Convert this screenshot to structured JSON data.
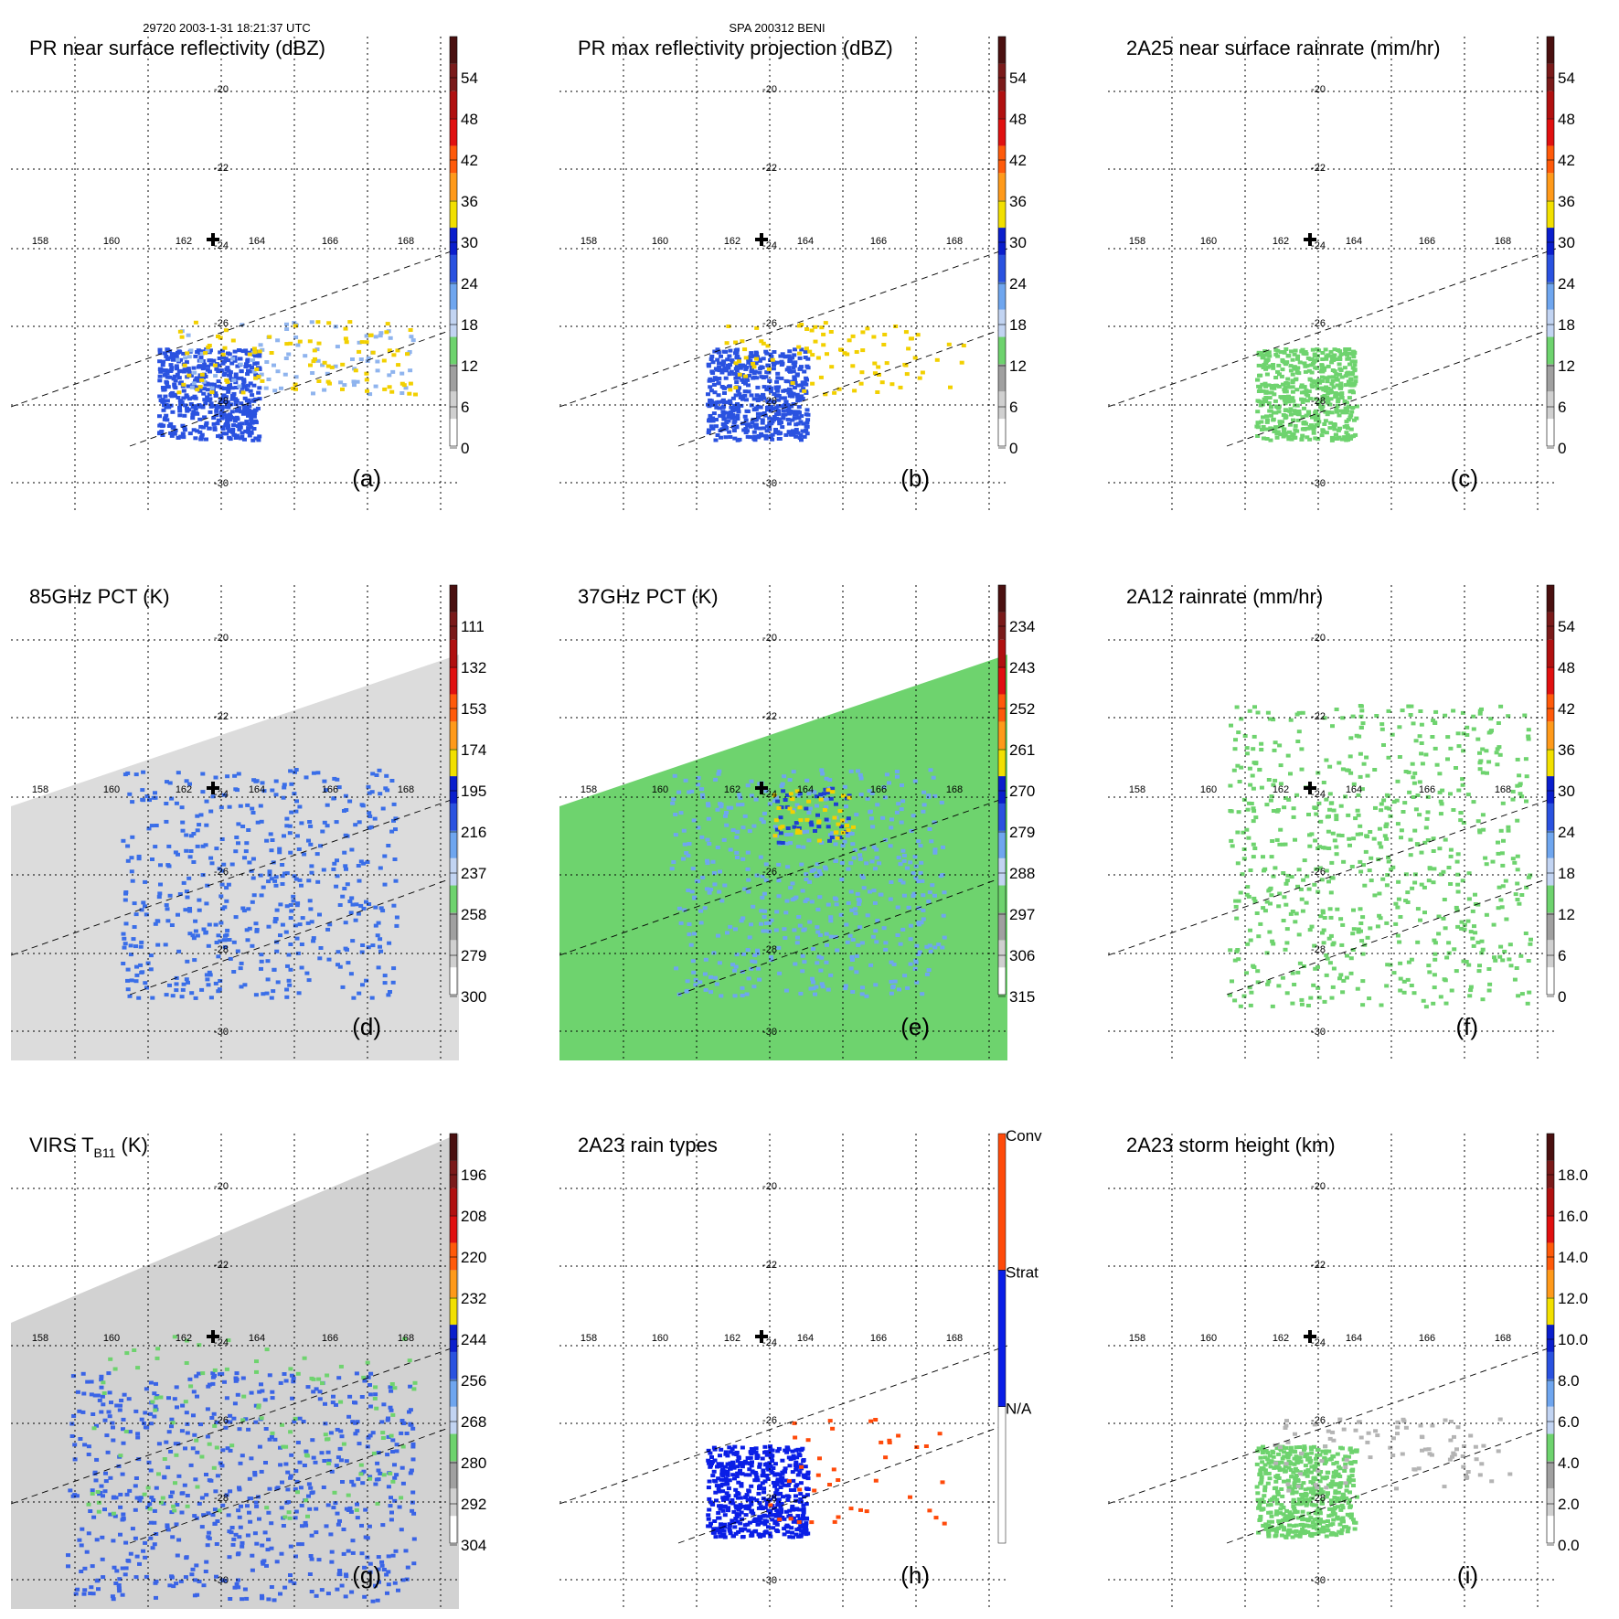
{
  "header": {
    "orbit_time": "29720 2003-1-31 18:21:37 UTC",
    "case_id": "SPA 200312 BENI"
  },
  "grid": {
    "lon_labels": [
      "158",
      "160",
      "162",
      "164",
      "166",
      "168"
    ],
    "lat_labels": [
      "-20",
      "-22",
      "-24",
      "-26",
      "-28",
      "-30"
    ],
    "marker": "plus-marker"
  },
  "chart_data": [
    {
      "type": "heatmap",
      "id": "a",
      "title": "PR near surface reflectivity (dBZ)",
      "panel_label": "(a)",
      "colorbar": {
        "ticks": [
          "54",
          "48",
          "42",
          "36",
          "30",
          "24",
          "18",
          "12",
          "6",
          "0"
        ]
      },
      "swath": "pr",
      "field": [
        {
          "name": "Stratiform reflectivity 24-30 dBZ",
          "color": "#2a52e0"
        },
        {
          "name": "Weak echo 18-24 dBZ",
          "color": "#8fb4ee"
        },
        {
          "name": "Convective cores 36-42 dBZ",
          "color": "#f2d000"
        }
      ]
    },
    {
      "type": "heatmap",
      "id": "b",
      "title": "PR max reflectivity projection (dBZ)",
      "panel_label": "(b)",
      "colorbar": {
        "ticks": [
          "54",
          "48",
          "42",
          "36",
          "30",
          "24",
          "18",
          "12",
          "6",
          "0"
        ]
      },
      "swath": "pr",
      "field": [
        {
          "name": "Max reflectivity 24-30 dBZ",
          "color": "#2a52e0"
        },
        {
          "name": "Max reflectivity 36-42 dBZ",
          "color": "#f2d000"
        }
      ]
    },
    {
      "type": "heatmap",
      "id": "c",
      "title": "2A25 near surface rainrate (mm/hr)",
      "panel_label": "(c)",
      "colorbar": {
        "ticks": [
          "54",
          "48",
          "42",
          "36",
          "30",
          "24",
          "18",
          "12",
          "6",
          "0"
        ]
      },
      "swath": "pr",
      "field": [
        {
          "name": "Rain rate 0-6 mm/hr",
          "color": "#6ed36e"
        }
      ]
    },
    {
      "type": "heatmap",
      "id": "d",
      "title": "85GHz PCT (K)",
      "panel_label": "(d)",
      "colorbar": {
        "ticks": [
          "111",
          "132",
          "153",
          "174",
          "195",
          "216",
          "237",
          "258",
          "279",
          "300"
        ]
      },
      "swath": "tmi",
      "field": [
        {
          "name": "Background 279-300 K",
          "color": "#dcdcdc"
        },
        {
          "name": "Scattering minimum 195-216 K",
          "color": "#3a6ee8"
        }
      ]
    },
    {
      "type": "heatmap",
      "id": "e",
      "title": "37GHz PCT (K)",
      "panel_label": "(e)",
      "colorbar": {
        "ticks": [
          "234",
          "243",
          "252",
          "261",
          "270",
          "279",
          "288",
          "297",
          "306",
          "315"
        ]
      },
      "swath": "tmi",
      "field": [
        {
          "name": "Clear ocean 288-297 K",
          "color": "#6ed36e"
        },
        {
          "name": "Rain region 270-279 K",
          "color": "#6fa6ef"
        },
        {
          "name": "Heavy rain 261-270 K",
          "color": "#1e3fd2"
        },
        {
          "name": "Core 252-261 K",
          "color": "#f2d000"
        }
      ]
    },
    {
      "type": "heatmap",
      "id": "f",
      "title": "2A12 rainrate (mm/hr)",
      "panel_label": "(f)",
      "colorbar": {
        "ticks": [
          "54",
          "48",
          "42",
          "36",
          "30",
          "24",
          "18",
          "12",
          "6",
          "0"
        ]
      },
      "swath": "tmi",
      "field": [
        {
          "name": "Rain rate 0-6 mm/hr",
          "color": "#6ed36e"
        }
      ]
    },
    {
      "type": "heatmap",
      "id": "g",
      "title": "VIRS T",
      "title_sub": "B11",
      "title_tail": " (K)",
      "panel_label": "(g)",
      "colorbar": {
        "ticks": [
          "196",
          "208",
          "220",
          "232",
          "244",
          "256",
          "268",
          "280",
          "292",
          "304"
        ]
      },
      "swath": "virs",
      "field": [
        {
          "name": "Warm ocean 280-292 K",
          "color": "#d2d2d2"
        },
        {
          "name": "Cold cloud tops 244-256 K",
          "color": "#3a64e6"
        },
        {
          "name": "Cloud edge 256-268 K",
          "color": "#6ed36e"
        }
      ]
    },
    {
      "type": "heatmap",
      "id": "h",
      "title": "2A23 rain types",
      "panel_label": "(h)",
      "colorbar": {
        "categories": [
          "Conv",
          "Strat",
          "N/A"
        ]
      },
      "swath": "pr",
      "field": [
        {
          "name": "Stratiform",
          "color": "#0a1ee6"
        },
        {
          "name": "Convective",
          "color": "#ff4a0a"
        }
      ]
    },
    {
      "type": "heatmap",
      "id": "i",
      "title": "2A23 storm height (km)",
      "panel_label": "(i)",
      "colorbar": {
        "ticks": [
          "18.0",
          "16.0",
          "14.0",
          "12.0",
          "10.0",
          "8.0",
          "6.0",
          "4.0",
          "2.0",
          "0.0"
        ]
      },
      "swath": "pr",
      "field": [
        {
          "name": "Storm height 4-6 km",
          "color": "#6ed36e"
        },
        {
          "name": "Storm height 2-4 km",
          "color": "#b4b4b4"
        }
      ]
    }
  ],
  "colors": {
    "cbar_standard": [
      "#ffffff",
      "#d0d0d0",
      "#a0a0a0",
      "#6ed36e",
      "#c2d4f2",
      "#6fa6ef",
      "#2a52e0",
      "#0a1ecc",
      "#f2e000",
      "#ff9a1a",
      "#ff5a0a",
      "#e01010",
      "#b01010",
      "#7a1a1a",
      "#4a1010"
    ],
    "cbar_reverse": [
      "#ffffff",
      "#d0d0d0",
      "#a0a0a0",
      "#6ed36e",
      "#c2d4f2",
      "#6fa6ef",
      "#2a52e0",
      "#0a1ecc",
      "#f2e000",
      "#ff9a1a",
      "#ff5a0a",
      "#e01010",
      "#b01010",
      "#7a1a1a",
      "#4a1010"
    ],
    "cbar_raintype": [
      "#ffffff",
      "#0a1ee6",
      "#ff4a0a"
    ]
  }
}
